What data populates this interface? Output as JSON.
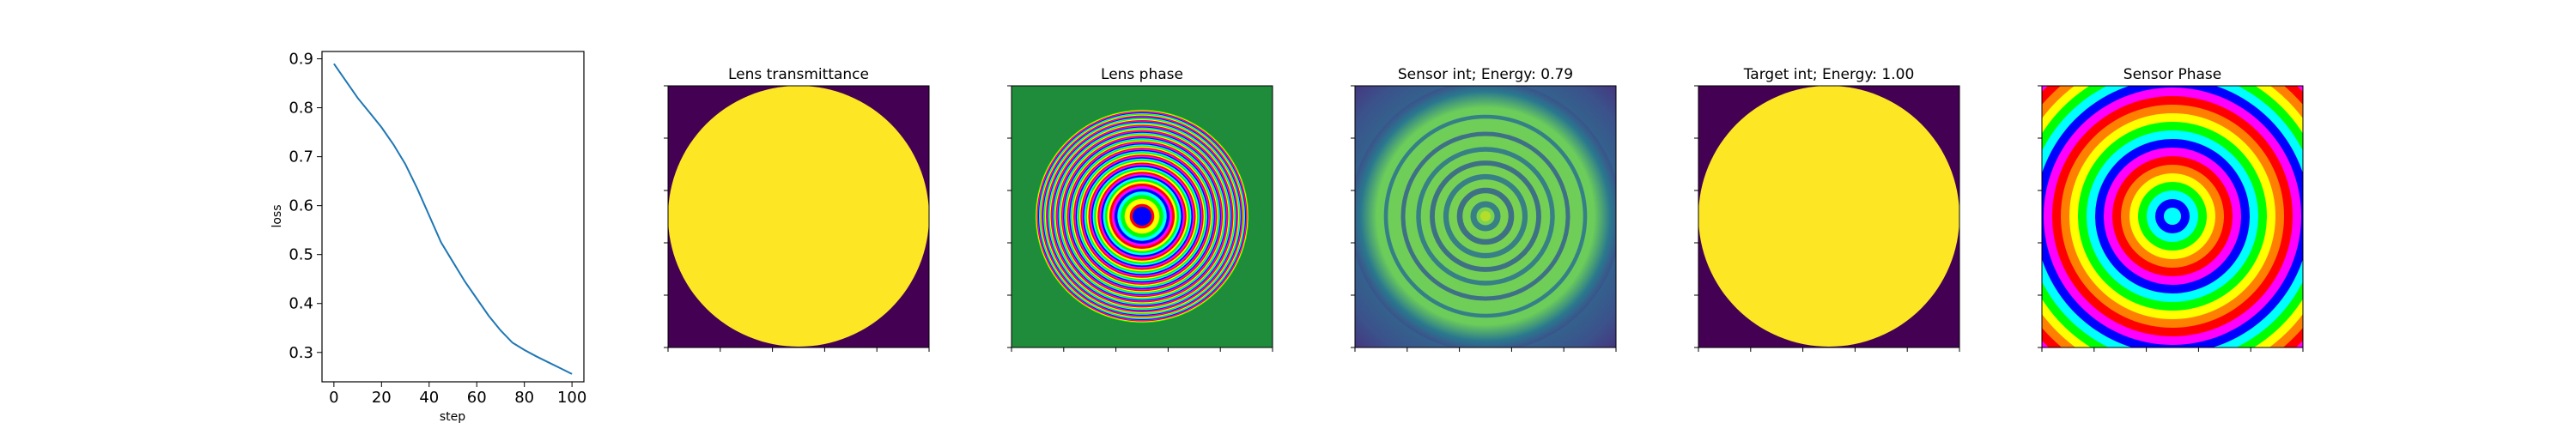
{
  "chart_data": [
    {
      "type": "line",
      "xlabel": "step",
      "ylabel": "loss",
      "xlim": [
        -5,
        105
      ],
      "ylim": [
        0.24,
        0.915
      ],
      "x_ticks": [
        0,
        20,
        40,
        60,
        80,
        100
      ],
      "y_ticks": [
        0.3,
        0.4,
        0.5,
        0.6,
        0.7,
        0.8,
        0.9
      ],
      "line_color": "#1f77b4",
      "grid": false,
      "series": [
        {
          "x": [
            0,
            5,
            10,
            15,
            20,
            25,
            30,
            35,
            40,
            45,
            50,
            55,
            60,
            65,
            70,
            75,
            80,
            85,
            90,
            95,
            100
          ],
          "y": [
            0.89,
            0.855,
            0.82,
            0.79,
            0.76,
            0.725,
            0.685,
            0.635,
            0.58,
            0.525,
            0.485,
            0.445,
            0.41,
            0.375,
            0.345,
            0.32,
            0.305,
            0.292,
            0.28,
            0.268,
            0.256
          ]
        }
      ]
    },
    {
      "type": "heatmap",
      "title": "Lens transmittance",
      "colormap": "viridis",
      "pattern": "circular aperture: value 1 inside disk, 0 outside"
    },
    {
      "type": "heatmap",
      "title": "Lens phase",
      "colormap": "hsv",
      "pattern": "concentric rings (wrapped phase), frequency increasing outward"
    },
    {
      "type": "heatmap",
      "title": "Sensor int; Energy: 0.79",
      "colormap": "viridis",
      "pattern": "concentric intensity rings over green disk"
    },
    {
      "type": "heatmap",
      "title": "Target int; Energy: 1.00",
      "colormap": "viridis",
      "pattern": "circular aperture: value 1 inside disk, 0 outside"
    },
    {
      "type": "heatmap",
      "title": "Sensor Phase",
      "colormap": "hsv",
      "pattern": "concentric ring phase pattern with angular modulation"
    }
  ]
}
